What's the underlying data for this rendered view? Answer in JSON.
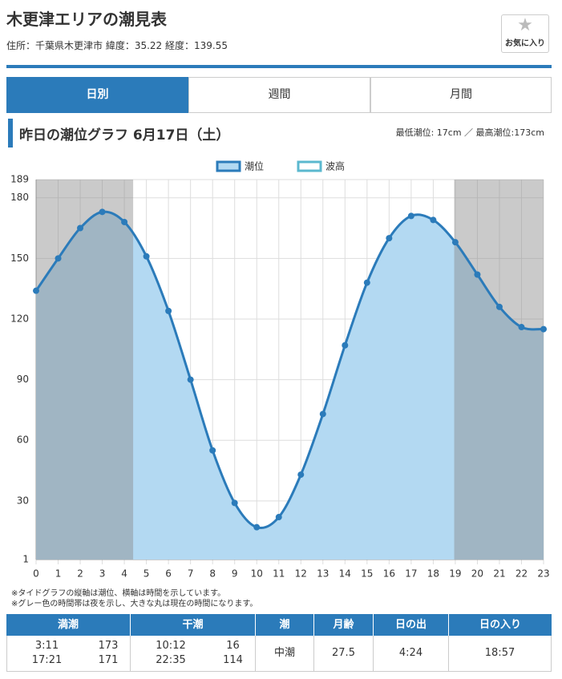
{
  "header": {
    "title": "木更津エリアの潮見表",
    "subtitle": "住所：千葉県木更津市 緯度：35.22 経度：139.55",
    "favorite": "お気に入り"
  },
  "tabs": [
    "日別",
    "週間",
    "月間"
  ],
  "section": {
    "title": "昨日の潮位グラフ 6月17日（土）",
    "summary": "最低潮位: 17cm ／ 最高潮位:173cm"
  },
  "chart_data": {
    "type": "line",
    "x": [
      0,
      1,
      2,
      3,
      4,
      5,
      6,
      7,
      8,
      9,
      10,
      11,
      12,
      13,
      14,
      15,
      16,
      17,
      18,
      19,
      20,
      21,
      22,
      23
    ],
    "series": [
      {
        "name": "潮位",
        "color": "#2b7bba",
        "fill": "#b3d9f2",
        "values": [
          134,
          150,
          165,
          173,
          168,
          151,
          124,
          90,
          55,
          29,
          17,
          22,
          43,
          73,
          107,
          138,
          160,
          171,
          169,
          158,
          142,
          126,
          116,
          115
        ]
      },
      {
        "name": "波高",
        "color": "#5bb8cf",
        "values": [
          null,
          null,
          null,
          null,
          null,
          null,
          null,
          null,
          null,
          null,
          null,
          null,
          null,
          null,
          null,
          null,
          null,
          null,
          null,
          null,
          null,
          null,
          null,
          null
        ]
      }
    ],
    "xlim": [
      0,
      23
    ],
    "xticks": [
      0,
      1,
      2,
      3,
      4,
      5,
      6,
      7,
      8,
      9,
      10,
      11,
      12,
      13,
      14,
      15,
      16,
      17,
      18,
      19,
      20,
      21,
      22,
      23
    ],
    "ylim": [
      1,
      189
    ],
    "yticks": [
      1,
      30,
      60,
      90,
      120,
      150,
      180,
      189
    ],
    "grid": true,
    "night_bands": [
      [
        0,
        4.4
      ],
      [
        18.95,
        23
      ]
    ],
    "night_color": "#8a8a8a",
    "legend": "top"
  },
  "notes": [
    "※タイドグラフの縦軸は潮位、横軸は時間を示しています。",
    "※グレー色の時間帯は夜を示し、大きな丸は現在の時間になります。"
  ],
  "table": {
    "headers": [
      "満潮",
      "干潮",
      "潮",
      "月齢",
      "日の出",
      "日の入り"
    ],
    "cells": [
      [
        "3:11",
        "17:21"
      ],
      [
        "173",
        "171"
      ],
      [
        "10:12",
        "22:35"
      ],
      [
        "16",
        "114"
      ],
      [
        "中潮"
      ],
      [
        "27.5"
      ],
      [
        "4:24"
      ],
      [
        "18:57"
      ]
    ]
  }
}
